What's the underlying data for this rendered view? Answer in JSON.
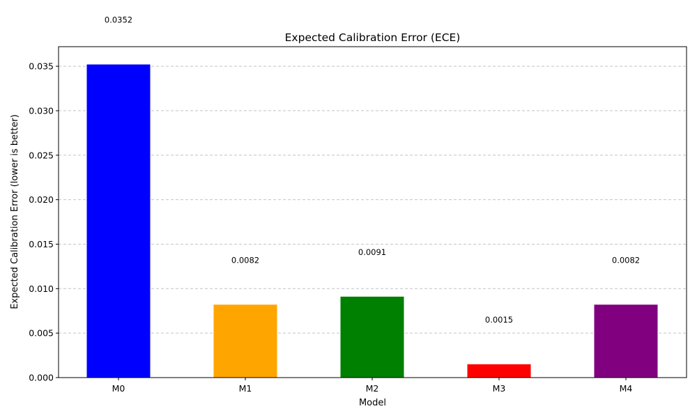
{
  "chart_data": {
    "type": "bar",
    "title": "Expected Calibration Error (ECE)",
    "xlabel": "Model",
    "ylabel": "Expected Calibration Error (lower is better)",
    "categories": [
      "M0",
      "M1",
      "M2",
      "M3",
      "M4"
    ],
    "values": [
      0.0352,
      0.0082,
      0.0091,
      0.0015,
      0.0082
    ],
    "value_labels": [
      "0.0352",
      "0.0082",
      "0.0091",
      "0.0015",
      "0.0082"
    ],
    "colors": [
      "#0000ff",
      "#ffa500",
      "#008000",
      "#ff0000",
      "#800080"
    ],
    "ylim": [
      0,
      0.0372
    ],
    "yticks": [
      0.0,
      0.005,
      0.01,
      0.015,
      0.02,
      0.025,
      0.03,
      0.035
    ],
    "ytick_labels": [
      "0.000",
      "0.005",
      "0.010",
      "0.015",
      "0.020",
      "0.025",
      "0.030",
      "0.035"
    ],
    "grid": "y-dashed",
    "legend": "none",
    "label_offset": 0.005
  }
}
